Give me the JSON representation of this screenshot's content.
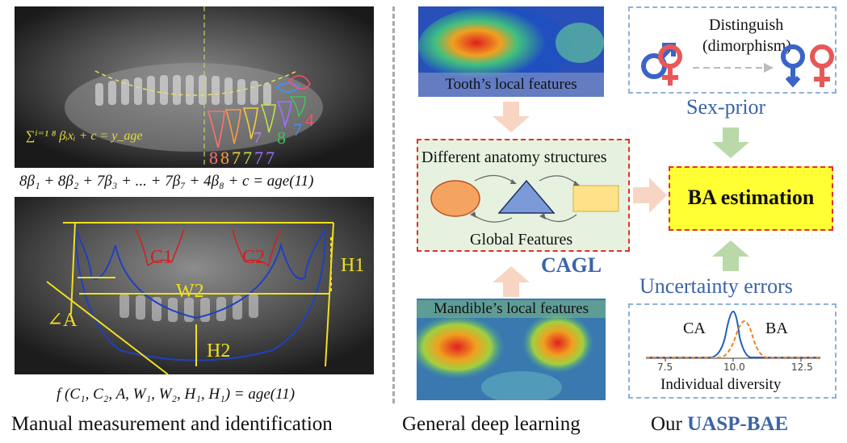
{
  "left": {
    "formula1_sum": "∑ⁱ⁼¹ ⁸ βᵢxᵢ + c = y_age",
    "tooth_numbers_top": [
      "7",
      "8",
      "7",
      "4"
    ],
    "tooth_numbers_bottom": [
      "8",
      "8",
      "7",
      "7",
      "7",
      "7"
    ],
    "formula2": "8β₁ + 8β₂ + 7β₃ + ... + 7β₇ + 4β₈ + c = age(11)",
    "measure_labels": {
      "c1": "C1",
      "c2": "C2",
      "h1": "H1",
      "w2": "W2",
      "a": "∠A",
      "h2": "H2"
    },
    "formula3": "f (C₁, C₂, A, W₁, W₂, H₁, H₁) = age(11)",
    "caption": "Manual measurement and identification"
  },
  "middle": {
    "tooth_label": "Tooth’s local features",
    "global_title": "Different anatomy structures",
    "global_label": "Global Features",
    "cagl": "CAGL",
    "mandible_label": "Mandible’s local features",
    "caption": "General deep learning"
  },
  "right": {
    "distinguish": "Distinguish",
    "dimorphism": "(dimorphism)",
    "sex_prior": "Sex-prior",
    "ba_estimation": "BA estimation",
    "uncertainty": "Uncertainty errors",
    "ca": "CA",
    "ba": "BA",
    "ticks": [
      "7.5",
      "10.0",
      "12.5"
    ],
    "individual": "Individual diversity",
    "caption_prefix": "Our",
    "caption_name": "UASP-BAE"
  },
  "colors": {
    "blue_text": "#3a64a8",
    "red_dash": "#e03030",
    "yellow_box": "#ffff33",
    "green_arrow": "#b9d9a8",
    "peach_arrow": "#f8d5c3",
    "orange_ellipse": "#f4a460",
    "blue_triangle": "#7a9ad8",
    "yellow_rect": "#ffe28a"
  }
}
